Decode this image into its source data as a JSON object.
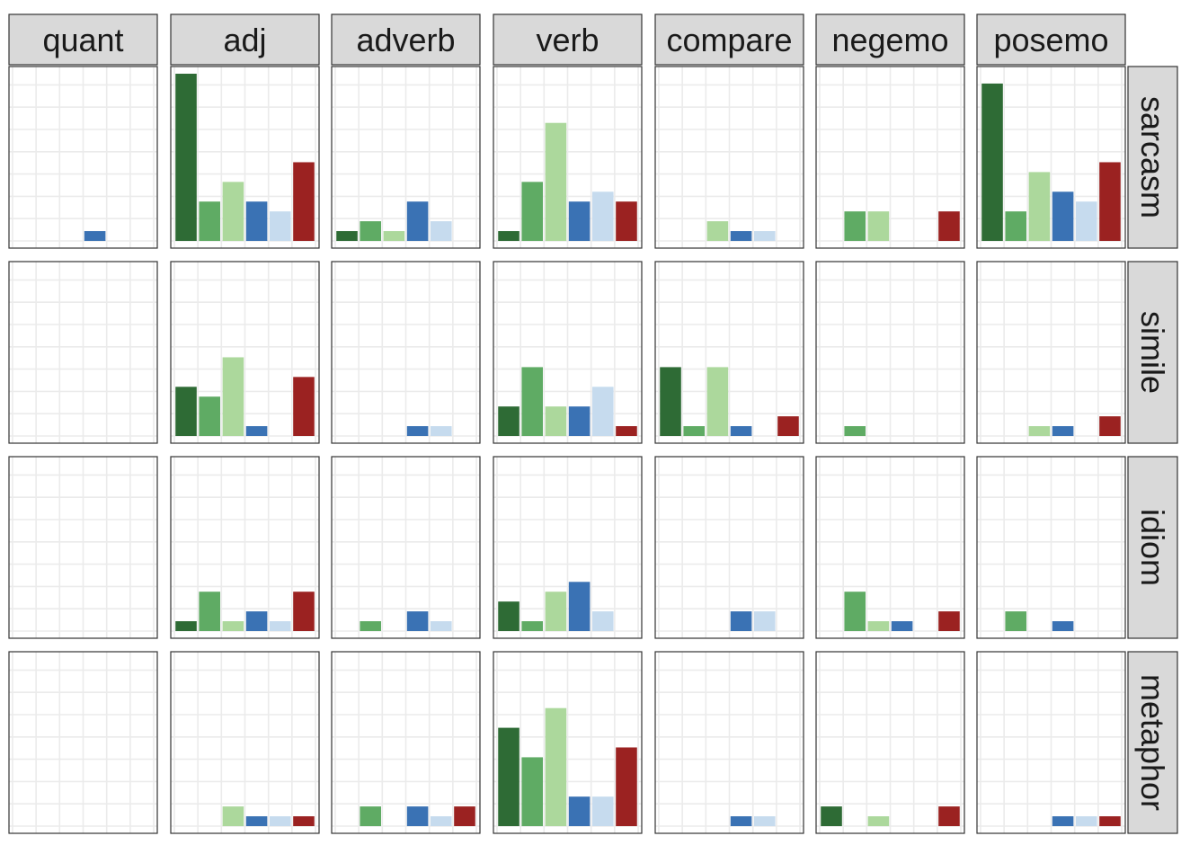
{
  "chart_data": {
    "type": "bar",
    "facet_columns": [
      "quant",
      "adj",
      "adverb",
      "verb",
      "compare",
      "negemo",
      "posemo"
    ],
    "facet_rows": [
      "sarcasm",
      "simile",
      "idiom",
      "metaphor"
    ],
    "series_colors": [
      "#2e6b35",
      "#5fab64",
      "#acd89c",
      "#3a72b4",
      "#c6dbee",
      "#9b2221"
    ],
    "ylim": [
      0,
      17
    ],
    "grid": true,
    "legend": "none",
    "values": {
      "sarcasm": {
        "quant": [
          0,
          0,
          0,
          1,
          0,
          0
        ],
        "adj": [
          17,
          4,
          6,
          4,
          3,
          8
        ],
        "adverb": [
          1,
          2,
          1,
          4,
          2,
          0
        ],
        "verb": [
          1,
          6,
          12,
          4,
          5,
          4
        ],
        "compare": [
          0,
          0,
          2,
          1,
          1,
          0
        ],
        "negemo": [
          0,
          3,
          3,
          0,
          0,
          3
        ],
        "posemo": [
          16,
          3,
          7,
          5,
          4,
          8
        ]
      },
      "simile": {
        "quant": [
          0,
          0,
          0,
          0,
          0,
          0
        ],
        "adj": [
          5,
          4,
          8,
          1,
          0,
          6
        ],
        "adverb": [
          0,
          0,
          0,
          1,
          1,
          0
        ],
        "verb": [
          3,
          7,
          3,
          3,
          5,
          1
        ],
        "compare": [
          7,
          1,
          7,
          1,
          0,
          2
        ],
        "negemo": [
          0,
          1,
          0,
          0,
          0,
          0
        ],
        "posemo": [
          0,
          0,
          1,
          1,
          0,
          2
        ]
      },
      "idiom": {
        "quant": [
          0,
          0,
          0,
          0,
          0,
          0
        ],
        "adj": [
          1,
          4,
          1,
          2,
          1,
          4
        ],
        "adverb": [
          0,
          1,
          0,
          2,
          1,
          0
        ],
        "verb": [
          3,
          1,
          4,
          5,
          2,
          0
        ],
        "compare": [
          0,
          0,
          0,
          2,
          2,
          0
        ],
        "negemo": [
          0,
          4,
          1,
          1,
          0,
          2
        ],
        "posemo": [
          0,
          2,
          0,
          1,
          0,
          0
        ]
      },
      "metaphor": {
        "quant": [
          0,
          0,
          0,
          0,
          0,
          0
        ],
        "adj": [
          0,
          0,
          2,
          1,
          1,
          1
        ],
        "adverb": [
          0,
          2,
          0,
          2,
          1,
          2
        ],
        "verb": [
          10,
          7,
          12,
          3,
          3,
          8
        ],
        "compare": [
          0,
          0,
          0,
          1,
          1,
          0
        ],
        "negemo": [
          2,
          0,
          1,
          0,
          0,
          2
        ],
        "posemo": [
          0,
          0,
          0,
          1,
          1,
          1
        ]
      }
    }
  }
}
